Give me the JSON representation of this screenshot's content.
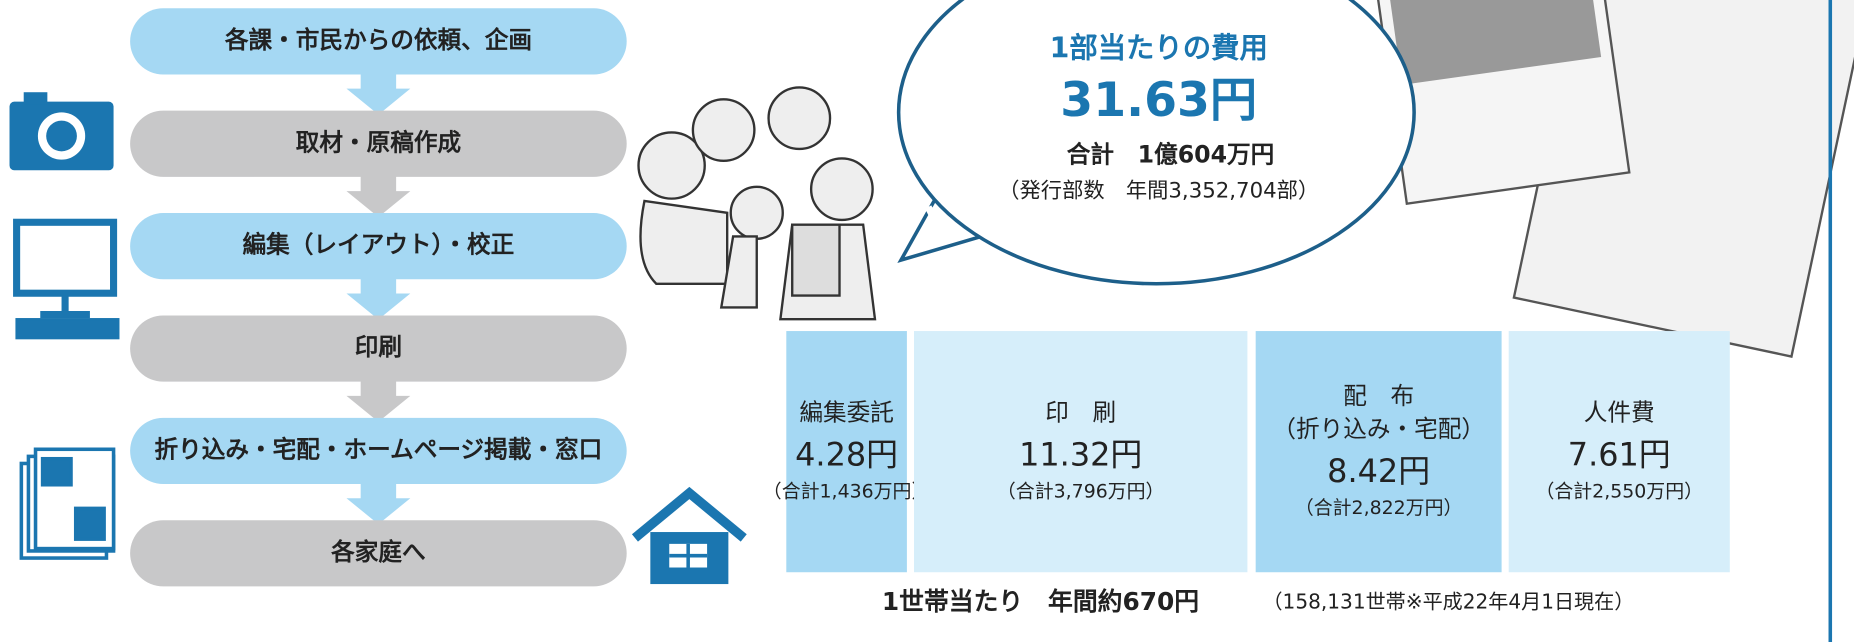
{
  "flow": [
    "各課・市民からの依頼、企画",
    "取材・原稿作成",
    "編集（レイアウト）・校正",
    "印刷",
    "折り込み・宅配・ホームページ掲載・窓口",
    "各家庭へ"
  ],
  "bubble": {
    "title": "1部当たりの費用",
    "amount": "31.63円",
    "total": "合計　1億604万円",
    "issued": "（発行部数　年間3,352,704部）"
  },
  "costs": [
    {
      "name": [
        "編集委託"
      ],
      "value": "4.28円",
      "total": "（合計1,436万円）"
    },
    {
      "name": [
        "印　刷"
      ],
      "value": "11.32円",
      "total": "（合計3,796万円）"
    },
    {
      "name": [
        "配　布",
        "（折り込み・宅配）"
      ],
      "value": "8.42円",
      "total": "（合計2,822万円）"
    },
    {
      "name": [
        "人件費"
      ],
      "value": "7.61円",
      "total": "（合計2,550万円）"
    }
  ],
  "footer": {
    "per_household": "1世帯当たり　年間約670円",
    "note": "（158,131世帯※平成22年4月1日現在）"
  }
}
